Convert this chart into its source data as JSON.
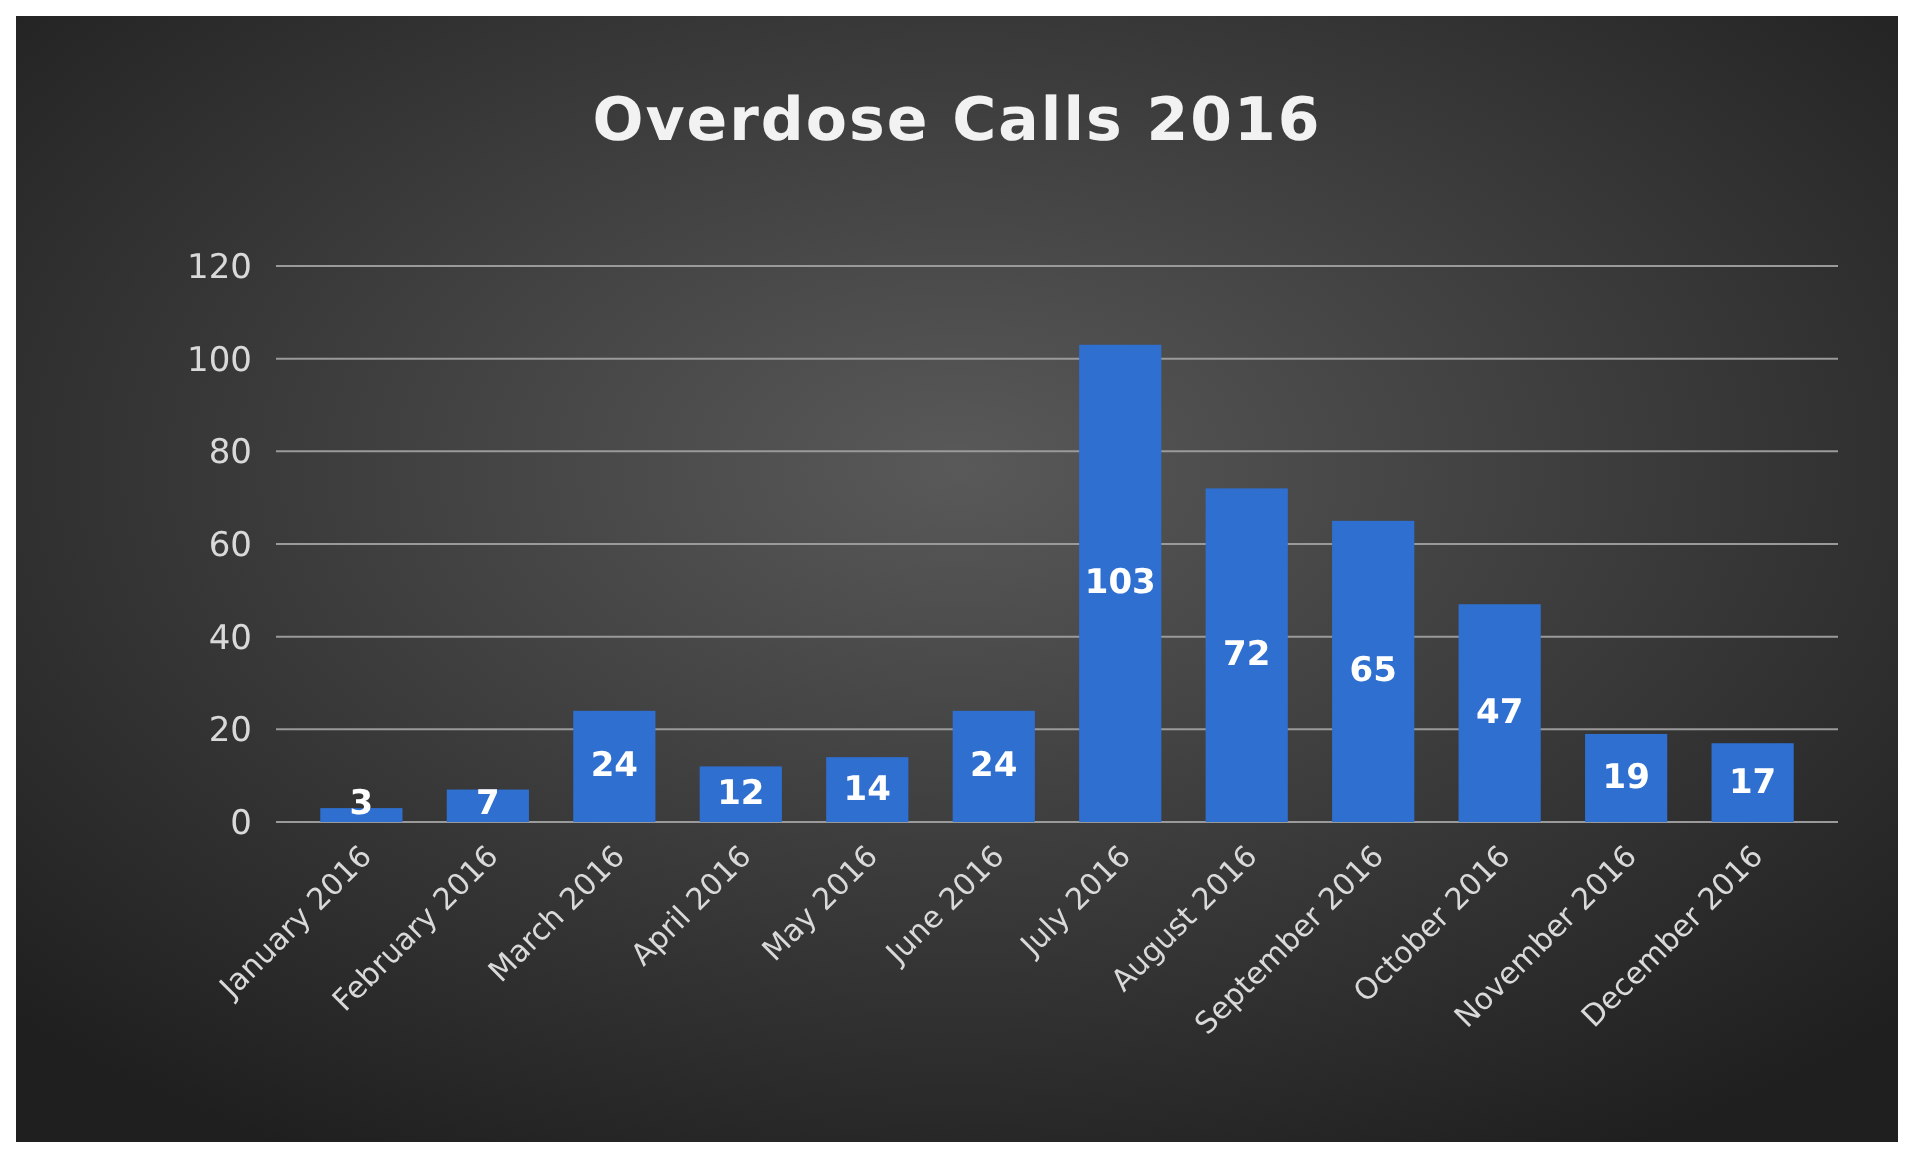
{
  "chart_data": {
    "type": "bar",
    "title": "Overdose Calls 2016",
    "categories": [
      "January 2016",
      "February 2016",
      "March 2016",
      "April 2016",
      "May 2016",
      "June 2016",
      "July 2016",
      "August 2016",
      "September 2016",
      "October 2016",
      "November 2016",
      "December 2016"
    ],
    "values": [
      3,
      7,
      24,
      12,
      14,
      24,
      103,
      72,
      65,
      47,
      19,
      17
    ],
    "color": "#2e6fd0",
    "ylim": [
      0,
      120
    ],
    "yticks": [
      0,
      20,
      40,
      60,
      80,
      100,
      120
    ],
    "grid": "y",
    "data_labels": true
  }
}
